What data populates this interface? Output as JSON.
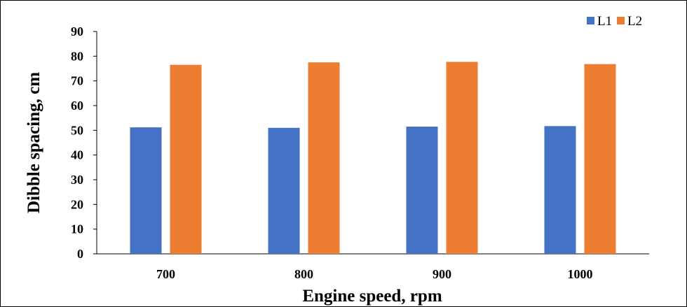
{
  "chart_data": {
    "type": "bar",
    "categories": [
      "700",
      "800",
      "900",
      "1000"
    ],
    "series": [
      {
        "name": "L1",
        "color": "#4472C4",
        "values": [
          51.2,
          51.0,
          51.5,
          51.7
        ]
      },
      {
        "name": "L2",
        "color": "#ED7D31",
        "values": [
          76.5,
          77.5,
          77.7,
          76.8
        ]
      }
    ],
    "xlabel": "Engine speed, rpm",
    "ylabel": "Dibble spacing, cm",
    "ylim": [
      0,
      90
    ],
    "yticks": [
      "0",
      "10",
      "20",
      "30",
      "40",
      "50",
      "60",
      "70",
      "80",
      "90"
    ],
    "grid": false,
    "legend_position": "top-right"
  }
}
